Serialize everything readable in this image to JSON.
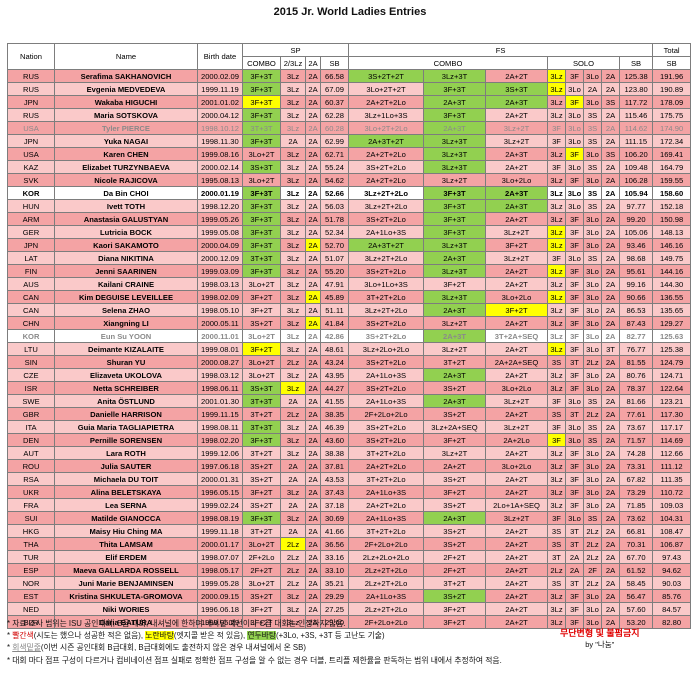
{
  "title": "2015 Jr. World Ladies Entries",
  "headers": {
    "nation": "Nation",
    "name": "Name",
    "birth": "Birth date",
    "sp": "SP",
    "fs": "FS",
    "total": "Total",
    "combo": "COMBO",
    "twox": "2/3Lz",
    "twoa": "2A",
    "sb": "SB",
    "solo": "SOLO"
  },
  "rows": [
    {
      "c": [
        "RUS",
        "Serafima SAKHANOVICH",
        "2000.02.09",
        "3F+3T",
        "3Lz",
        "2A",
        "66.58",
        "3S+2T+2T",
        "3Lz+3T",
        "2A+2T",
        "3Lz",
        "3F",
        "3Lo",
        "2A",
        "125.38",
        "191.96"
      ],
      "s": {
        "3": "g",
        "5": "",
        "7": "g",
        "8": "g",
        "10": "y"
      },
      "k": ""
    },
    {
      "c": [
        "RUS",
        "Evgenia MEDVEDEVA",
        "1999.11.19",
        "3F+3T",
        "3Lz",
        "2A",
        "67.09",
        "3Lo+2T+2T",
        "3F+3T",
        "3S+3T",
        "3Lz",
        "3Lo",
        "2A",
        "2A",
        "123.80",
        "190.89"
      ],
      "s": {
        "3": "g",
        "8": "g",
        "9": "g",
        "10": "y"
      },
      "k": "alt"
    },
    {
      "c": [
        "JPN",
        "Wakaba HIGUCHI",
        "2001.01.02",
        "3F+3T",
        "3Lz",
        "2A",
        "60.37",
        "2A+2T+2Lo",
        "2A+3T",
        "2A+3T",
        "3Lz",
        "3F",
        "3Lo",
        "3S",
        "117.72",
        "178.09"
      ],
      "s": {
        "3": "y",
        "8": "g",
        "9": "g",
        "11": "y"
      },
      "k": ""
    },
    {
      "c": [
        "RUS",
        "Maria SOTSKOVA",
        "2000.04.12",
        "3F+3T",
        "3Lz",
        "2A",
        "62.28",
        "3Lz+1Lo+3S",
        "3F+3T",
        "2A+2T",
        "3Lz",
        "3Lo",
        "3S",
        "2A",
        "115.46",
        "175.75"
      ],
      "s": {
        "3": "g",
        "8": "g"
      },
      "k": "alt"
    },
    {
      "c": [
        "USA",
        "Tyler PIERCE",
        "1998.10.12",
        "3T+3T",
        "3Lz",
        "2A",
        "60.28",
        "3Lo+2T+2Lo",
        "2A+3T",
        "3Lz+2T",
        "3F",
        "3Lo",
        "3S",
        "2A",
        "114.62",
        "174.90"
      ],
      "s": {
        "3": "g",
        "8": "g"
      },
      "k": "grey"
    },
    {
      "c": [
        "JPN",
        "Yuka NAGAI",
        "1998.11.30",
        "3F+3T",
        "2A",
        "2A",
        "62.99",
        "2A+3T+2T",
        "3Lz+3T",
        "3Lz+2T",
        "3F",
        "3Lo",
        "3S",
        "2A",
        "111.15",
        "172.34"
      ],
      "s": {
        "3": "g",
        "7": "g",
        "8": "g"
      },
      "k": "alt"
    },
    {
      "c": [
        "USA",
        "Karen CHEN",
        "1999.08.16",
        "3Lo+2T",
        "3Lz",
        "2A",
        "62.71",
        "2A+2T+2Lo",
        "3Lz+3T",
        "2A+3T",
        "3Lz",
        "3F",
        "3Lo",
        "3S",
        "106.20",
        "169.41"
      ],
      "s": {
        "8": "g",
        "11": "y"
      },
      "k": ""
    },
    {
      "c": [
        "KAZ",
        "Elizabet TURZYNBAEVA",
        "2000.02.14",
        "3S+3T",
        "3Lz",
        "2A",
        "55.24",
        "3S+2T+2Lo",
        "3Lz+3T",
        "2A+2T",
        "3F",
        "3Lo",
        "3S",
        "2A",
        "109.48",
        "164.79"
      ],
      "s": {
        "3": "g",
        "8": "g"
      },
      "k": "alt"
    },
    {
      "c": [
        "SVK",
        "Nicole RAJICOVA",
        "1995.08.13",
        "3Lo+2T",
        "3Lz",
        "2A",
        "54.62",
        "2A+2T+2Lo",
        "3Lz+2T",
        "3Lo+2Lo",
        "3Lz",
        "3F",
        "3Lo",
        "2A",
        "106.28",
        "159.55"
      ],
      "s": {},
      "k": ""
    },
    {
      "c": [
        "KOR",
        "Da Bin CHOI",
        "2000.01.19",
        "3F+3T",
        "3Lz",
        "2A",
        "52.66",
        "3Lz+2T+2Lo",
        "3F+3T",
        "2A+3T",
        "3Lz",
        "3Lo",
        "3S",
        "2A",
        "105.94",
        "158.60"
      ],
      "s": {
        "3": "g",
        "8": "g",
        "9": "g"
      },
      "k": "kor"
    },
    {
      "c": [
        "HUN",
        "Ivett TOTH",
        "1998.12.20",
        "3F+3T",
        "3Lz",
        "2A",
        "56.03",
        "3Lz+2T+2Lo",
        "3F+3T",
        "2A+3T",
        "3Lz",
        "3Lo",
        "3S",
        "2A",
        "97.77",
        "152.18"
      ],
      "s": {
        "3": "g",
        "8": "g",
        "9": "g"
      },
      "k": "alt"
    },
    {
      "c": [
        "ARM",
        "Anastasia GALUSTYAN",
        "1999.05.26",
        "3F+3T",
        "3Lz",
        "2A",
        "51.78",
        "3S+2T+2Lo",
        "3F+3T",
        "2A+2T",
        "3Lz",
        "3F",
        "3Lo",
        "2A",
        "99.20",
        "150.98"
      ],
      "s": {
        "3": "g",
        "8": "g"
      },
      "k": ""
    },
    {
      "c": [
        "GER",
        "Lutricia BOCK",
        "1999.05.08",
        "3F+3T",
        "3Lz",
        "2A",
        "52.34",
        "2A+1Lo+3S",
        "3F+3T",
        "3Lz+2T",
        "3Lz",
        "3F",
        "3Lo",
        "2A",
        "105.06",
        "148.13"
      ],
      "s": {
        "3": "g",
        "8": "g",
        "10": "y"
      },
      "k": "alt"
    },
    {
      "c": [
        "JPN",
        "Kaori SAKAMOTO",
        "2000.04.09",
        "3F+3T",
        "3Lz",
        "2A",
        "52.70",
        "2A+3T+2T",
        "3Lz+3T",
        "3F+2T",
        "3Lz",
        "3F",
        "3Lo",
        "2A",
        "93.46",
        "146.16"
      ],
      "s": {
        "3": "g",
        "5": "y",
        "7": "g",
        "8": "g",
        "10": "y"
      },
      "k": ""
    },
    {
      "c": [
        "LAT",
        "Diana NIKITINA",
        "2000.12.09",
        "3T+3T",
        "3Lz",
        "2A",
        "51.07",
        "3Lz+2T+2Lo",
        "2A+3T",
        "3Lz+2T",
        "3F",
        "3Lo",
        "3S",
        "2A",
        "98.68",
        "149.75"
      ],
      "s": {
        "3": "g",
        "8": "g"
      },
      "k": "alt"
    },
    {
      "c": [
        "FIN",
        "Jenni SAARINEN",
        "1999.03.09",
        "3F+3T",
        "3Lz",
        "2A",
        "55.20",
        "3S+2T+2Lo",
        "3Lz+3T",
        "2A+2T",
        "3Lz",
        "3F",
        "3Lo",
        "2A",
        "95.61",
        "144.16"
      ],
      "s": {
        "3": "g",
        "8": "g",
        "10": "y"
      },
      "k": ""
    },
    {
      "c": [
        "AUS",
        "Kailani CRAINE",
        "1998.03.13",
        "3Lo+2T",
        "3Lz",
        "2A",
        "47.91",
        "3Lo+1Lo+3S",
        "3F+2T",
        "2A+2T",
        "3Lz",
        "3F",
        "3Lo",
        "2A",
        "99.16",
        "144.30"
      ],
      "s": {},
      "k": "alt"
    },
    {
      "c": [
        "CAN",
        "Kim DEGUISE LEVEILLEE",
        "1998.02.09",
        "3F+2T",
        "3Lz",
        "2A",
        "45.89",
        "3T+2T+2Lo",
        "3Lz+3T",
        "3Lo+2Lo",
        "3Lz",
        "3F",
        "3Lo",
        "2A",
        "90.66",
        "136.55"
      ],
      "s": {
        "5": "y",
        "8": "g",
        "10": "y"
      },
      "k": ""
    },
    {
      "c": [
        "CAN",
        "Selena ZHAO",
        "1998.05.10",
        "3F+2T",
        "3Lz",
        "2A",
        "51.11",
        "3Lz+2T+2Lo",
        "2A+3T",
        "3F+2T",
        "3Lz",
        "3F",
        "3Lo",
        "2A",
        "86.53",
        "135.65"
      ],
      "s": {
        "8": "g",
        "9": "y"
      },
      "k": "alt"
    },
    {
      "c": [
        "CHN",
        "Xiangning LI",
        "2000.05.11",
        "3S+2T",
        "3Lz",
        "2A",
        "41.84",
        "3S+2T+2Lo",
        "3Lz+2T",
        "2A+2T",
        "3Lz",
        "3F",
        "3Lo",
        "2A",
        "87.43",
        "129.27"
      ],
      "s": {
        "5": "y"
      },
      "k": ""
    },
    {
      "c": [
        "KOR",
        "Eun Su YOON",
        "2000.11.01",
        "3Lo+2T",
        "3Lz",
        "2A",
        "42.86",
        "3S+2T+2Lo",
        "2A+3T",
        "3T+2A+SEQ",
        "3Lz",
        "3F",
        "3Lo",
        "2A",
        "82.77",
        "125.63"
      ],
      "s": {
        "8": "g"
      },
      "k": "kor grey"
    },
    {
      "c": [
        "LTU",
        "Deimante KIZALAITE",
        "1999.08.01",
        "3F+2T",
        "3Lz",
        "2A",
        "48.61",
        "3Lz+2Lo+2Lo",
        "3Lz+2T",
        "2A+2T",
        "3Lz",
        "3F",
        "3Lo",
        "3T",
        "76.77",
        "125.38"
      ],
      "s": {
        "3": "y",
        "10": "y"
      },
      "k": "alt"
    },
    {
      "c": [
        "SIN",
        "Shuran YU",
        "2000.08.27",
        "3Lo+2T",
        "2Lz",
        "2A",
        "43.24",
        "3S+2T+2Lo",
        "3T+2T",
        "2A+2A+SEQ",
        "3S",
        "3T",
        "2Lz",
        "2A",
        "81.55",
        "124.79"
      ],
      "s": {},
      "k": ""
    },
    {
      "c": [
        "CZE",
        "Elizaveta UKOLOVA",
        "1998.03.12",
        "3Lo+2T",
        "3Lz",
        "2A",
        "43.95",
        "2A+1Lo+3S",
        "2A+3T",
        "2A+2T",
        "3Lz",
        "3F",
        "3Lo",
        "2A",
        "80.76",
        "124.71"
      ],
      "s": {
        "8": "g"
      },
      "k": "alt"
    },
    {
      "c": [
        "ISR",
        "Netta SCHREIBER",
        "1998.06.11",
        "3S+3T",
        "3Lz",
        "2A",
        "44.27",
        "3S+2T+2Lo",
        "3S+2T",
        "3Lo+2Lo",
        "3Lz",
        "3F",
        "3Lo",
        "2A",
        "78.37",
        "122.64"
      ],
      "s": {
        "3": "g",
        "4": "y"
      },
      "k": ""
    },
    {
      "c": [
        "SWE",
        "Anita ÖSTLUND",
        "2001.01.30",
        "3T+3T",
        "2A",
        "2A",
        "41.55",
        "2A+1Lo+3S",
        "2A+3T",
        "3Lz+2T",
        "3F",
        "3Lo",
        "3S",
        "2A",
        "81.66",
        "123.21"
      ],
      "s": {
        "3": "g",
        "8": "g"
      },
      "k": "alt"
    },
    {
      "c": [
        "GBR",
        "Danielle HARRISON",
        "1999.11.15",
        "3T+2T",
        "2Lz",
        "2A",
        "38.35",
        "2F+2Lo+2Lo",
        "3S+2T",
        "2A+2T",
        "3S",
        "3T",
        "2Lz",
        "2A",
        "77.61",
        "117.30"
      ],
      "s": {},
      "k": ""
    },
    {
      "c": [
        "ITA",
        "Guia Maria TAGLIAPIETRA",
        "1998.08.11",
        "3T+3T",
        "3Lz",
        "2A",
        "46.39",
        "3S+2T+2Lo",
        "3Lz+2A+SEQ",
        "3Lz+2T",
        "3F",
        "3Lo",
        "3S",
        "2A",
        "73.67",
        "117.17"
      ],
      "s": {
        "3": "g"
      },
      "k": "alt"
    },
    {
      "c": [
        "DEN",
        "Pernille SORENSEN",
        "1998.02.20",
        "3F+3T",
        "3Lz",
        "2A",
        "43.60",
        "3S+2T+2Lo",
        "3F+2T",
        "2A+2Lo",
        "3F",
        "3Lo",
        "3S",
        "2A",
        "71.57",
        "114.69"
      ],
      "s": {
        "3": "g",
        "10": "y"
      },
      "k": ""
    },
    {
      "c": [
        "AUT",
        "Lara ROTH",
        "1999.12.06",
        "3T+2T",
        "3Lz",
        "2A",
        "38.38",
        "3T+2T+2Lo",
        "3Lz+2T",
        "2A+2T",
        "3Lz",
        "3F",
        "3Lo",
        "2A",
        "74.28",
        "112.66"
      ],
      "s": {},
      "k": "alt"
    },
    {
      "c": [
        "ROU",
        "Julia SAUTER",
        "1997.06.18",
        "3S+2T",
        "2A",
        "2A",
        "37.81",
        "2A+2T+2Lo",
        "2A+2T",
        "3Lo+2Lo",
        "3Lz",
        "3F",
        "3Lo",
        "2A",
        "73.31",
        "111.12"
      ],
      "s": {},
      "k": ""
    },
    {
      "c": [
        "RSA",
        "Michaela DU TOIT",
        "2000.01.31",
        "3S+2T",
        "2A",
        "2A",
        "43.53",
        "3T+2T+2Lo",
        "3S+2T",
        "2A+2T",
        "3Lz",
        "3F",
        "3Lo",
        "2A",
        "67.82",
        "111.35"
      ],
      "s": {},
      "k": "alt"
    },
    {
      "c": [
        "UKR",
        "Alina BELETSKAYA",
        "1996.05.15",
        "3F+2T",
        "3Lz",
        "2A",
        "37.43",
        "2A+1Lo+3S",
        "3F+2T",
        "2A+2T",
        "3Lz",
        "3F",
        "3Lo",
        "2A",
        "73.29",
        "110.72"
      ],
      "s": {},
      "k": ""
    },
    {
      "c": [
        "FRA",
        "Lea SERNA",
        "1999.02.24",
        "3S+2T",
        "2A",
        "2A",
        "37.18",
        "2A+2T+2Lo",
        "3S+2T",
        "2Lo+1A+SEQ",
        "3Lz",
        "3F",
        "3Lo",
        "2A",
        "71.85",
        "109.03"
      ],
      "s": {},
      "k": "alt"
    },
    {
      "c": [
        "SUI",
        "Matilde GIANOCCA",
        "1998.08.19",
        "3F+3T",
        "3Lz",
        "2A",
        "30.69",
        "2A+1Lo+3S",
        "2A+3T",
        "3Lz+2T",
        "3F",
        "3Lo",
        "3S",
        "2A",
        "73.62",
        "104.31"
      ],
      "s": {
        "3": "g",
        "8": "g"
      },
      "k": ""
    },
    {
      "c": [
        "HKG",
        "Maisy Hiu Ching MA",
        "1999.11.18",
        "3T+2T",
        "2A",
        "2A",
        "41.66",
        "3T+2T+2Lo",
        "3S+2T",
        "2A+2T",
        "3S",
        "3T",
        "2Lz",
        "2A",
        "66.81",
        "108.47"
      ],
      "s": {},
      "k": "alt"
    },
    {
      "c": [
        "THA",
        "Thita LAMSAM",
        "2000.01.17",
        "3Lo+2T",
        "2Lz",
        "2A",
        "36.56",
        "2F+2Lo+2Lo",
        "3S+2T",
        "2A+2T",
        "3S",
        "3T",
        "2Lz",
        "2A",
        "70.31",
        "106.87"
      ],
      "s": {
        "4": "y"
      },
      "k": ""
    },
    {
      "c": [
        "TUR",
        "Elif ERDEM",
        "1998.07.07",
        "2F+2Lo",
        "2Lz",
        "2A",
        "33.16",
        "2Lz+2Lo+2Lo",
        "2F+2T",
        "2A+2T",
        "3T",
        "2A",
        "2Lz",
        "2A",
        "67.70",
        "97.43"
      ],
      "s": {},
      "k": "alt"
    },
    {
      "c": [
        "ESP",
        "Maeva GALLARDA ROSSELL",
        "1998.05.17",
        "2F+2T",
        "2Lz",
        "2A",
        "33.10",
        "2Lz+2T+2Lo",
        "2F+2T",
        "2A+2T",
        "2Lz",
        "2A",
        "2F",
        "2A",
        "61.52",
        "94.62"
      ],
      "s": {},
      "k": ""
    },
    {
      "c": [
        "NOR",
        "Juni Marie BENJAMINSEN",
        "1999.05.28",
        "3Lo+2T",
        "2Lz",
        "2A",
        "35.21",
        "2Lz+2T+2Lo",
        "3T+2T",
        "2A+2T",
        "3S",
        "3T",
        "2Lz",
        "2A",
        "58.45",
        "90.03"
      ],
      "s": {},
      "k": "alt"
    },
    {
      "c": [
        "EST",
        "Kristina SHKULETA-GROMOVA",
        "2000.09.15",
        "3S+2T",
        "3Lz",
        "2A",
        "29.29",
        "2A+1Lo+3S",
        "3S+2T",
        "2A+2T",
        "3Lz",
        "3F",
        "3Lo",
        "2A",
        "56.47",
        "85.76"
      ],
      "s": {
        "8": "g"
      },
      "k": ""
    },
    {
      "c": [
        "NED",
        "Niki WORIES",
        "1996.06.18",
        "3F+2T",
        "3Lz",
        "2A",
        "27.25",
        "2Lz+2T+2Lo",
        "3F+2T",
        "2A+2T",
        "3Lz",
        "3F",
        "3Lo",
        "2A",
        "57.60",
        "84.57"
      ],
      "s": {},
      "k": "alt"
    },
    {
      "c": [
        "BLR",
        "Daria BATURA",
        "1999.05.29",
        "3F+2T",
        "3Lz",
        "2A",
        "29.60",
        "2F+2Lo+2Lo",
        "3F+2T",
        "2A+2T",
        "3Lz",
        "3F",
        "3Lo",
        "2A",
        "53.20",
        "82.80"
      ],
      "s": {},
      "k": ""
    }
  ],
  "notes": {
    "l1": "* 자료 조사 범위는 ISU 공인대회, B급 대회, 내셔널에 한하며 내셔널 예선이나 C급 대회는 인정하지 않음.",
    "l2a": "* ",
    "l2b": "빨간색",
    "l2c": "(시도는 했으나 성공한 적은 없음), ",
    "l2d": "노란바탕",
    "l2e": "(엣지콜 받은 적 있음), ",
    "l2f": "연두바탕",
    "l2g": "(+3Lo, +3S, +3T 등 고난도 기술)",
    "l3a": "* ",
    "l3b": "회색밑줄",
    "l3c": "(이번 시즌 공인대회 B급대회, B급대회에도 출전하지 않은 경우 내셔널에서 온 SB)",
    "l4": "* 대회 마다 점프 구성이 다르거나 컴비네이션 점프 실패로 정확한 점프 구성을 알 수 없는 경우 더블, 트리플 제한률을 판독하는 범위 내에서 추정하여 적음."
  },
  "credit": {
    "line1": "무단변형 및 불펌금지",
    "line2": "by \"나눔\""
  }
}
